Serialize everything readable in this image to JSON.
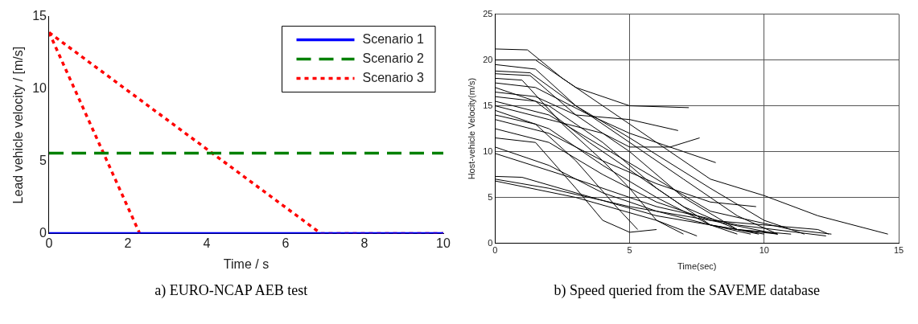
{
  "chart_data": [
    {
      "type": "line",
      "title": "a) EURO-NCAP AEB test",
      "xlabel": "Time / s",
      "ylabel": "Lead vehicle velocity / [m/s]",
      "xlim": [
        0,
        10
      ],
      "ylim": [
        0,
        15
      ],
      "xticks": [
        0,
        2,
        4,
        6,
        8,
        10
      ],
      "yticks": [
        0,
        5,
        10,
        15
      ],
      "legend": "top right",
      "series": [
        {
          "name": "Scenario 1",
          "color": "#0000ff",
          "line_style": "solid",
          "x": [
            0,
            10
          ],
          "values": [
            0,
            0
          ]
        },
        {
          "name": "Scenario 2",
          "color": "#008000",
          "line_style": "dashed",
          "x": [
            0,
            10
          ],
          "values": [
            5.56,
            5.56
          ]
        },
        {
          "name": "Scenario 3",
          "color": "#ff0000",
          "line_style": "dotted",
          "x": [
            0,
            2.3
          ],
          "values": [
            13.9,
            0
          ]
        },
        {
          "color": "#ff0000",
          "line_style": "dotted",
          "x": [
            0,
            6.9,
            10
          ],
          "values": [
            13.9,
            0,
            0
          ]
        }
      ]
    },
    {
      "type": "line",
      "title": "b) Speed queried from the SAVEME database",
      "xlabel": "Time(sec)",
      "ylabel": "Host-vehicle Velocity(m/s)",
      "xlim": [
        0,
        15
      ],
      "ylim": [
        0,
        25
      ],
      "xticks": [
        0,
        5,
        10,
        15
      ],
      "yticks": [
        0,
        5,
        10,
        15,
        20,
        25
      ],
      "grid": true,
      "series": [
        {
          "color": "#000000",
          "x": [
            0,
            1.2,
            2.5,
            5,
            8,
            10,
            12,
            14.6
          ],
          "values": [
            21.2,
            21.1,
            18,
            13,
            7,
            5.2,
            3,
            1
          ]
        },
        {
          "color": "#000000",
          "x": [
            0,
            1.5,
            3,
            5,
            7.2
          ],
          "values": [
            20,
            20,
            17,
            15,
            14.8
          ]
        },
        {
          "color": "#000000",
          "x": [
            0,
            1.5,
            3,
            5,
            7,
            9,
            10.5
          ],
          "values": [
            19.5,
            19,
            15,
            11,
            7,
            3,
            1
          ]
        },
        {
          "color": "#000000",
          "x": [
            0,
            1.3,
            3,
            5,
            7,
            9,
            9.8
          ],
          "values": [
            18.5,
            18.3,
            14,
            10,
            5,
            1.5,
            1
          ]
        },
        {
          "color": "#000000",
          "x": [
            0,
            1,
            2.5,
            4,
            5,
            6,
            7
          ],
          "values": [
            18,
            17.8,
            13,
            9,
            6,
            2.5,
            1
          ]
        },
        {
          "color": "#000000",
          "x": [
            0,
            1.5,
            3.5,
            5,
            7,
            8.2
          ],
          "values": [
            17.5,
            17,
            14,
            12,
            10,
            8.8
          ]
        },
        {
          "color": "#000000",
          "x": [
            0,
            2,
            4,
            6,
            8,
            9.5
          ],
          "values": [
            17,
            15,
            11,
            6,
            2,
            1
          ]
        },
        {
          "color": "#000000",
          "x": [
            0,
            1.5,
            3,
            5,
            6.8
          ],
          "values": [
            16.5,
            16,
            14,
            13.5,
            12.3
          ]
        },
        {
          "color": "#000000",
          "x": [
            0,
            1.5,
            3.5,
            5,
            7,
            9,
            10.5
          ],
          "values": [
            16,
            15.5,
            11,
            8,
            4,
            1.5,
            1
          ]
        },
        {
          "color": "#000000",
          "x": [
            0,
            2,
            4,
            6,
            8,
            11,
            12.5
          ],
          "values": [
            15.5,
            14,
            10.5,
            7,
            3.5,
            1.5,
            1
          ]
        },
        {
          "color": "#000000",
          "x": [
            0,
            2,
            4,
            5,
            6.5,
            7.6
          ],
          "values": [
            15,
            13.5,
            12,
            10.5,
            10.5,
            11.5
          ]
        },
        {
          "color": "#000000",
          "x": [
            0,
            2,
            4,
            6,
            8,
            9
          ],
          "values": [
            14.5,
            12.5,
            8.5,
            5,
            2,
            1
          ]
        },
        {
          "color": "#000000",
          "x": [
            0,
            1.5,
            3,
            4.5,
            5.3
          ],
          "values": [
            14,
            13,
            9,
            4,
            1.5
          ]
        },
        {
          "color": "#000000",
          "x": [
            0,
            2,
            4,
            6,
            8,
            9.7
          ],
          "values": [
            13.5,
            12,
            9,
            6.5,
            4.5,
            4
          ]
        },
        {
          "color": "#000000",
          "x": [
            0,
            2,
            4,
            6,
            8,
            10.5
          ],
          "values": [
            12.5,
            11,
            7.5,
            4.5,
            2.5,
            1
          ]
        },
        {
          "color": "#000000",
          "x": [
            0,
            1.5,
            3,
            4,
            5,
            6
          ],
          "values": [
            11.5,
            11,
            6,
            2.5,
            1.2,
            1.5
          ]
        },
        {
          "color": "#000000",
          "x": [
            0,
            2,
            4,
            6,
            8,
            10
          ],
          "values": [
            10.5,
            8.5,
            5.5,
            3.5,
            2,
            1
          ]
        },
        {
          "color": "#000000",
          "x": [
            0,
            3,
            6,
            9,
            12.3
          ],
          "values": [
            9.8,
            7,
            4,
            2,
            0.8
          ]
        },
        {
          "color": "#000000",
          "x": [
            0,
            1,
            3,
            6,
            9,
            11
          ],
          "values": [
            7.3,
            7.2,
            5.5,
            3,
            1.5,
            1
          ]
        },
        {
          "color": "#000000",
          "x": [
            0,
            2,
            5,
            8,
            12,
            12.4
          ],
          "values": [
            7,
            6,
            4,
            2.5,
            1.5,
            1
          ]
        },
        {
          "color": "#000000",
          "x": [
            0,
            3,
            6,
            7.5
          ],
          "values": [
            6.8,
            5,
            2.5,
            0.8
          ]
        },
        {
          "color": "#000000",
          "x": [
            0,
            1.3,
            3,
            5,
            8,
            10,
            11.5
          ],
          "values": [
            18.8,
            18.6,
            15,
            11.5,
            6,
            2.5,
            1
          ]
        }
      ]
    }
  ]
}
